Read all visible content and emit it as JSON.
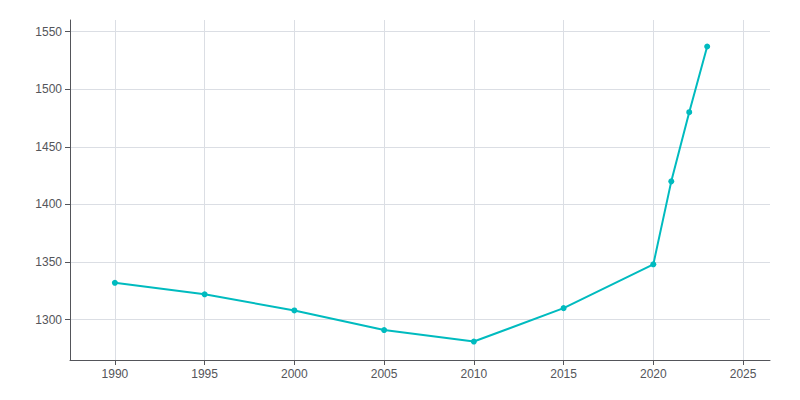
{
  "chart_data": {
    "type": "line",
    "x": [
      1990,
      1995,
      2000,
      2005,
      2010,
      2015,
      2020,
      2021,
      2022,
      2023
    ],
    "values": [
      1332,
      1322,
      1308,
      1291,
      1281,
      1310,
      1348,
      1420,
      1480,
      1537
    ],
    "color": "#00BBBF",
    "marker": "circle",
    "xlim": [
      1987.5,
      2026.5
    ],
    "ylim": [
      1265,
      1560
    ],
    "xticks": [
      1990,
      1995,
      2000,
      2005,
      2010,
      2015,
      2020,
      2025
    ],
    "yticks": [
      1300,
      1350,
      1400,
      1450,
      1500,
      1550
    ],
    "grid": true
  }
}
